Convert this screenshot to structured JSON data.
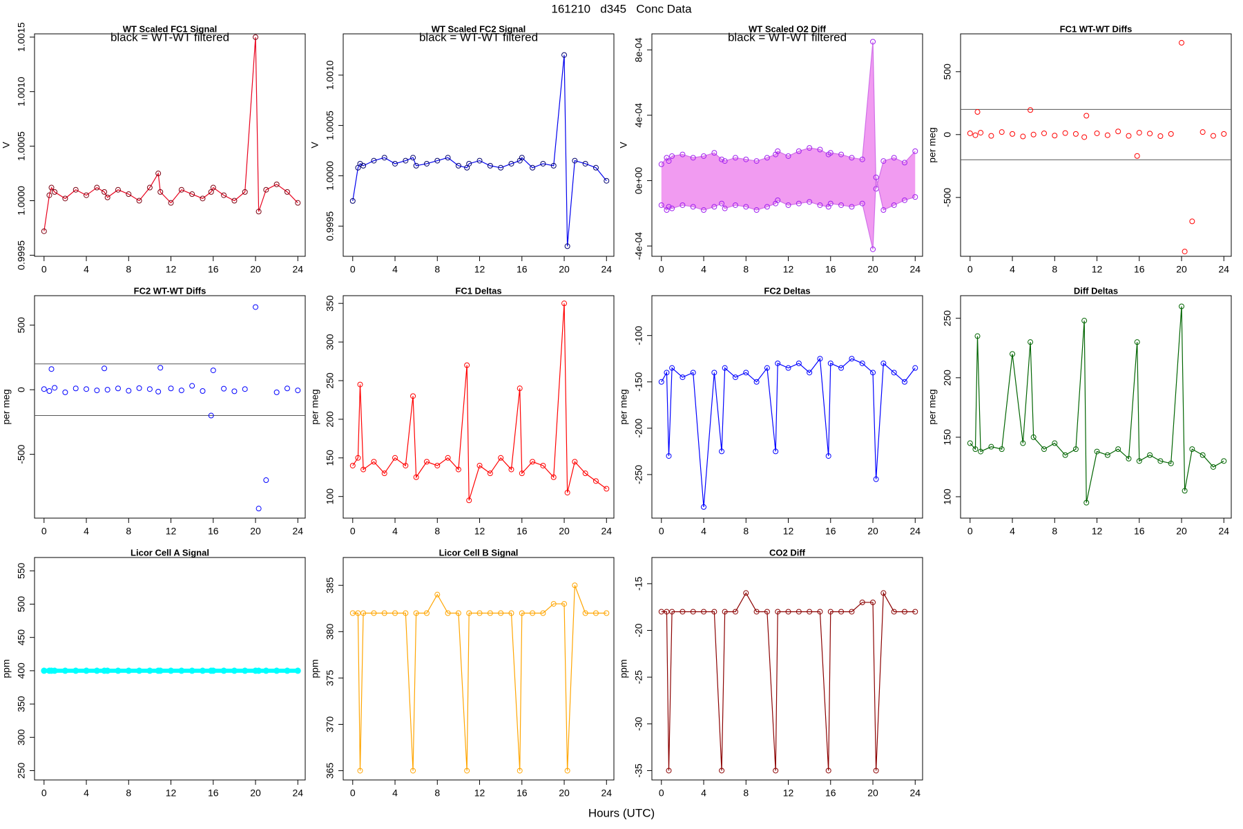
{
  "page": {
    "title": "161210   d345   Conc Data",
    "xlabel": "Hours (UTC)"
  },
  "chart_data": [
    {
      "type": "line",
      "title": "WT Scaled FC1 Signal",
      "annotation": "black = WT-WT filtered",
      "ylabel": "V",
      "x": [
        0,
        0.5,
        0.7,
        1,
        2,
        3,
        4,
        5,
        5.7,
        6,
        7,
        8,
        9,
        10,
        10.8,
        11,
        12,
        13,
        14,
        15,
        15.8,
        16,
        17,
        18,
        19,
        20,
        20.3,
        21,
        22,
        23,
        24
      ],
      "series": [
        {
          "color": "#e8001c",
          "marker_color": "#7a0010",
          "values": [
            0.99972,
            1.00005,
            1.00012,
            1.00008,
            1.00002,
            1.0001,
            1.00005,
            1.00012,
            1.00008,
            1.00003,
            1.0001,
            1.00006,
            1.0,
            1.00012,
            1.00025,
            1.00008,
            0.99998,
            1.0001,
            1.00006,
            1.00002,
            1.00008,
            1.00012,
            1.00005,
            1.0,
            1.00008,
            1.0015,
            0.9999,
            1.0001,
            1.00015,
            1.00008,
            0.99998
          ]
        }
      ],
      "xlim": [
        -0.9,
        24.7
      ],
      "xticks": [
        0,
        4,
        8,
        12,
        16,
        20,
        24
      ],
      "ylim": [
        0.99949,
        1.00153
      ],
      "yticks": [
        0.9995,
        {
          "value": 1,
          "label": "1.0000"
        },
        1.0005,
        {
          "value": 1.001,
          "label": "1.0010"
        },
        1.0015
      ]
    },
    {
      "type": "line",
      "title": "WT Scaled FC2 Signal",
      "annotation": "black = WT-WT filtered",
      "ylabel": "V",
      "x": [
        0,
        0.5,
        0.7,
        1,
        2,
        3,
        4,
        5,
        5.7,
        6,
        7,
        8,
        9,
        10,
        10.8,
        11,
        12,
        13,
        14,
        15,
        15.8,
        16,
        17,
        18,
        19,
        20,
        20.3,
        21,
        22,
        23,
        24
      ],
      "series": [
        {
          "color": "#0000ee",
          "marker_color": "#00006b",
          "values": [
            0.99975,
            1.00008,
            1.00012,
            1.0001,
            1.00015,
            1.00018,
            1.00012,
            1.00015,
            1.00018,
            1.0001,
            1.00012,
            1.00015,
            1.00018,
            1.0001,
            1.00008,
            1.00012,
            1.00015,
            1.0001,
            1.00008,
            1.00012,
            1.00015,
            1.00018,
            1.00008,
            1.00012,
            1.0001,
            1.0012,
            0.9993,
            1.00015,
            1.00012,
            1.00008,
            0.99995
          ]
        }
      ],
      "xlim": [
        -0.9,
        24.7
      ],
      "xticks": [
        0,
        4,
        8,
        12,
        16,
        20,
        24
      ],
      "ylim": [
        0.9992,
        1.00141
      ],
      "yticks": [
        0.9995,
        {
          "value": 1,
          "label": "1.0000"
        },
        1.0005,
        {
          "value": 1.001,
          "label": "1.0010"
        }
      ]
    },
    {
      "type": "line",
      "title": "WT Scaled O2 Diff",
      "annotation": "black = WT-WT filtered",
      "ylabel": "V",
      "fill_color": "#ee82ee",
      "x": [
        0,
        0.5,
        0.7,
        1,
        2,
        3,
        4,
        5,
        5.7,
        6,
        7,
        8,
        9,
        10,
        10.8,
        11,
        12,
        13,
        14,
        15,
        15.8,
        16,
        17,
        18,
        19,
        20,
        20.3,
        21,
        22,
        23,
        24
      ],
      "series": [
        {
          "color": "#d070e8",
          "marker_color": "#a020f0",
          "values": [
            0.0001,
            0.00014,
            0.00012,
            0.00015,
            0.00016,
            0.00014,
            0.00015,
            0.00017,
            0.00013,
            0.00012,
            0.00014,
            0.00013,
            0.00012,
            0.00014,
            0.00016,
            0.00018,
            0.00015,
            0.00018,
            0.0002,
            0.00019,
            0.00016,
            0.00017,
            0.00016,
            0.00014,
            0.00013,
            0.00085,
            -5e-05,
            0.00012,
            0.00014,
            0.00011,
            0.00018
          ]
        },
        {
          "color": "#d070e8",
          "marker_color": "#a020f0",
          "values": [
            -0.00015,
            -0.00018,
            -0.00016,
            -0.00017,
            -0.00015,
            -0.00016,
            -0.00018,
            -0.00016,
            -0.00014,
            -0.00017,
            -0.00015,
            -0.00016,
            -0.00018,
            -0.00016,
            -0.00014,
            -0.00012,
            -0.00015,
            -0.00014,
            -0.00013,
            -0.00015,
            -0.00016,
            -0.00014,
            -0.00015,
            -0.00016,
            -0.00014,
            -0.00042,
            2e-05,
            -0.00018,
            -0.00015,
            -0.00012,
            -0.0001
          ]
        }
      ],
      "xlim": [
        -0.9,
        24.7
      ],
      "xticks": [
        0,
        4,
        8,
        12,
        16,
        20,
        24
      ],
      "ylim": [
        -0.000463,
        0.000898
      ],
      "yticks": [
        {
          "value": -0.0004,
          "label": "-4e-04"
        },
        {
          "value": 0,
          "label": "0e+00"
        },
        {
          "value": 0.0004,
          "label": "4e-04"
        },
        {
          "value": 0.0008,
          "label": "8e-04"
        }
      ]
    },
    {
      "type": "scatter",
      "title": "FC1 WT-WT Diffs",
      "ylabel": "per meg",
      "hlines": [
        200,
        -200
      ],
      "x": [
        0,
        0.5,
        0.7,
        1,
        2,
        3,
        4,
        5,
        5.7,
        6,
        7,
        8,
        9,
        10,
        10.8,
        11,
        12,
        13,
        14,
        15,
        15.8,
        16,
        17,
        18,
        19,
        20,
        20.3,
        21,
        22,
        23,
        24
      ],
      "series": [
        {
          "color": "#ff0000",
          "values": [
            10,
            -5,
            180,
            15,
            -10,
            20,
            5,
            -15,
            195,
            0,
            10,
            -8,
            12,
            5,
            -20,
            150,
            10,
            -5,
            25,
            -10,
            -170,
            15,
            8,
            -12,
            5,
            730,
            -930,
            -690,
            20,
            -10,
            5
          ]
        }
      ],
      "xlim": [
        -0.9,
        24.7
      ],
      "xticks": [
        0,
        4,
        8,
        12,
        16,
        20,
        24
      ],
      "ylim": [
        -968,
        801
      ],
      "yticks": [
        -500,
        0,
        500
      ]
    },
    {
      "type": "scatter",
      "title": "FC2 WT-WT Diffs",
      "ylabel": "per meg",
      "hlines": [
        200,
        -200
      ],
      "x": [
        0,
        0.5,
        0.7,
        1,
        2,
        3,
        4,
        5,
        5.7,
        6,
        7,
        8,
        9,
        10,
        10.8,
        11,
        12,
        13,
        14,
        15,
        15.8,
        16,
        17,
        18,
        19,
        20,
        20.3,
        21,
        22,
        23,
        24
      ],
      "series": [
        {
          "color": "#0000ff",
          "values": [
            5,
            -10,
            160,
            15,
            -20,
            10,
            5,
            -5,
            165,
            0,
            10,
            -8,
            12,
            5,
            -15,
            170,
            10,
            -5,
            30,
            -10,
            -200,
            150,
            8,
            -12,
            5,
            640,
            -920,
            -700,
            -20,
            10,
            -5
          ]
        }
      ],
      "xlim": [
        -0.9,
        24.7
      ],
      "xticks": [
        0,
        4,
        8,
        12,
        16,
        20,
        24
      ],
      "ylim": [
        -994,
        728
      ],
      "yticks": [
        -500,
        0,
        500
      ]
    },
    {
      "type": "line",
      "title": "FC1 Deltas",
      "ylabel": "per meg",
      "x": [
        0,
        0.5,
        0.7,
        1,
        2,
        3,
        4,
        5,
        5.7,
        6,
        7,
        8,
        9,
        10,
        10.8,
        11,
        12,
        13,
        14,
        15,
        15.8,
        16,
        17,
        18,
        19,
        20,
        20.3,
        21,
        22,
        23,
        24
      ],
      "series": [
        {
          "color": "#ff0000",
          "values": [
            140,
            150,
            245,
            135,
            145,
            130,
            150,
            140,
            230,
            125,
            145,
            140,
            150,
            135,
            270,
            95,
            140,
            130,
            150,
            135,
            240,
            130,
            145,
            140,
            125,
            350,
            105,
            145,
            130,
            120,
            110
          ]
        }
      ],
      "xlim": [
        -0.9,
        24.7
      ],
      "xticks": [
        0,
        4,
        8,
        12,
        16,
        20,
        24
      ],
      "ylim": [
        72,
        360
      ],
      "yticks": [
        100,
        150,
        200,
        250,
        300,
        350
      ]
    },
    {
      "type": "line",
      "title": "FC2 Deltas",
      "ylabel": "per meg",
      "x": [
        0,
        0.5,
        0.7,
        1,
        2,
        3,
        4,
        5,
        5.7,
        6,
        7,
        8,
        9,
        10,
        10.8,
        11,
        12,
        13,
        14,
        15,
        15.8,
        16,
        17,
        18,
        19,
        20,
        20.3,
        21,
        22,
        23,
        24
      ],
      "series": [
        {
          "color": "#0000ff",
          "values": [
            -150,
            -140,
            -230,
            -135,
            -145,
            -140,
            -285,
            -140,
            -225,
            -135,
            -145,
            -140,
            -150,
            -135,
            -225,
            -130,
            -135,
            -130,
            -140,
            -125,
            -230,
            -130,
            -135,
            -125,
            -130,
            -140,
            -255,
            -130,
            -140,
            -150,
            -135
          ]
        }
      ],
      "xlim": [
        -0.9,
        24.7
      ],
      "xticks": [
        0,
        4,
        8,
        12,
        16,
        20,
        24
      ],
      "ylim": [
        -297,
        -57
      ],
      "yticks": [
        -250,
        -200,
        -150,
        -100
      ]
    },
    {
      "type": "line",
      "title": "Diff Deltas",
      "ylabel": "per meg",
      "x": [
        0,
        0.5,
        0.7,
        1,
        2,
        3,
        4,
        5,
        5.7,
        6,
        7,
        8,
        9,
        10,
        10.8,
        11,
        12,
        13,
        14,
        15,
        15.8,
        16,
        17,
        18,
        19,
        20,
        20.3,
        21,
        22,
        23,
        24
      ],
      "series": [
        {
          "color": "#006400",
          "values": [
            145,
            140,
            235,
            138,
            142,
            140,
            220,
            145,
            230,
            150,
            140,
            145,
            135,
            140,
            248,
            95,
            138,
            135,
            140,
            132,
            230,
            130,
            135,
            130,
            128,
            260,
            105,
            140,
            135,
            125,
            130
          ]
        }
      ],
      "xlim": [
        -0.9,
        24.7
      ],
      "xticks": [
        0,
        4,
        8,
        12,
        16,
        20,
        24
      ],
      "ylim": [
        82,
        269
      ],
      "yticks": [
        100,
        150,
        200,
        250
      ]
    },
    {
      "type": "line",
      "title": "Licor Cell A Signal",
      "ylabel": "ppm",
      "marker_fill": true,
      "x": [
        0,
        0.5,
        0.7,
        1,
        2,
        3,
        4,
        5,
        5.7,
        6,
        7,
        8,
        9,
        10,
        10.8,
        11,
        12,
        13,
        14,
        15,
        15.8,
        16,
        17,
        18,
        19,
        20,
        20.3,
        21,
        22,
        23,
        24
      ],
      "series": [
        {
          "color": "#00ffff",
          "values": [
            400,
            400,
            400,
            400,
            400,
            400,
            400,
            400,
            400,
            400,
            400,
            400,
            400,
            400,
            400,
            400,
            400,
            400,
            400,
            400,
            400,
            400,
            400,
            400,
            400,
            400,
            400,
            400,
            400,
            400,
            400
          ]
        }
      ],
      "xlim": [
        -0.9,
        24.7
      ],
      "xticks": [
        0,
        4,
        8,
        12,
        16,
        20,
        24
      ],
      "ylim": [
        236,
        570
      ],
      "yticks": [
        250,
        300,
        350,
        400,
        450,
        500,
        550
      ]
    },
    {
      "type": "line",
      "title": "Licor Cell B Signal",
      "ylabel": "ppm",
      "x": [
        0,
        0.5,
        0.7,
        1,
        2,
        3,
        4,
        5,
        5.7,
        6,
        7,
        8,
        9,
        10,
        10.8,
        11,
        12,
        13,
        14,
        15,
        15.8,
        16,
        17,
        18,
        19,
        20,
        20.3,
        21,
        22,
        23,
        24
      ],
      "series": [
        {
          "color": "#ffa500",
          "values": [
            382,
            382,
            365,
            382,
            382,
            382,
            382,
            382,
            365,
            382,
            382,
            384,
            382,
            382,
            365,
            382,
            382,
            382,
            382,
            382,
            365,
            382,
            382,
            382,
            383,
            383,
            365,
            385,
            382,
            382,
            382
          ]
        }
      ],
      "xlim": [
        -0.9,
        24.7
      ],
      "xticks": [
        0,
        4,
        8,
        12,
        16,
        20,
        24
      ],
      "ylim": [
        364,
        388
      ],
      "yticks": [
        365,
        370,
        375,
        380,
        385
      ]
    },
    {
      "type": "line",
      "title": "CO2 Diff",
      "ylabel": "ppm",
      "x": [
        0,
        0.5,
        0.7,
        1,
        2,
        3,
        4,
        5,
        5.7,
        6,
        7,
        8,
        9,
        10,
        10.8,
        11,
        12,
        13,
        14,
        15,
        15.8,
        16,
        17,
        18,
        19,
        20,
        20.3,
        21,
        22,
        23,
        24
      ],
      "series": [
        {
          "color": "#8b0000",
          "values": [
            -18,
            -18,
            -35,
            -18,
            -18,
            -18,
            -18,
            -18,
            -35,
            -18,
            -18,
            -16,
            -18,
            -18,
            -35,
            -18,
            -18,
            -18,
            -18,
            -18,
            -35,
            -18,
            -18,
            -18,
            -17,
            -17,
            -35,
            -16,
            -18,
            -18,
            -18
          ]
        }
      ],
      "xlim": [
        -0.9,
        24.7
      ],
      "xticks": [
        0,
        4,
        8,
        12,
        16,
        20,
        24
      ],
      "ylim": [
        -36,
        -12.2
      ],
      "yticks": [
        -35,
        -30,
        -25,
        -20,
        -15
      ]
    }
  ]
}
